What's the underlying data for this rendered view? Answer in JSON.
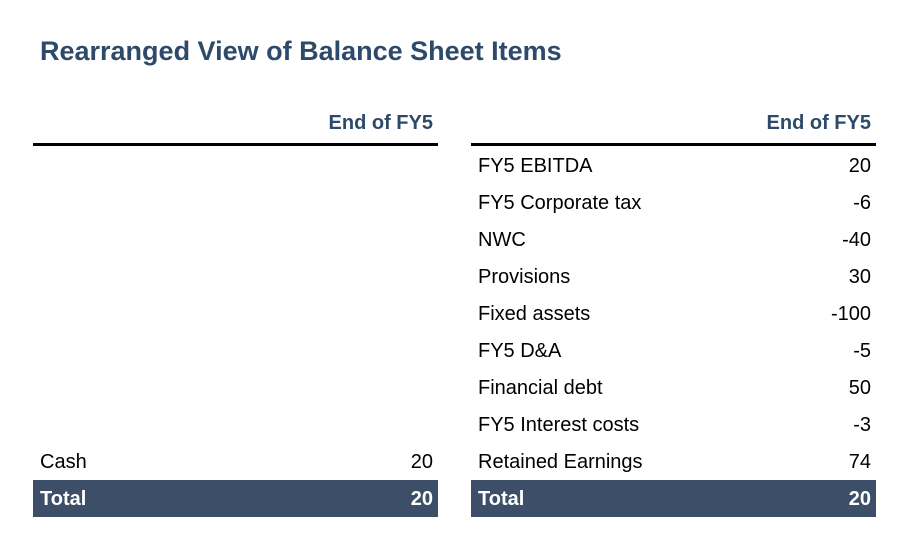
{
  "title": "Rearranged View of Balance Sheet Items",
  "tables": [
    {
      "header": "End of FY5",
      "rows": [
        {
          "label": "Cash",
          "value": 20
        }
      ],
      "total": {
        "label": "Total",
        "value": 20
      }
    },
    {
      "header": "End of FY5",
      "rows": [
        {
          "label": "FY5 EBITDA",
          "value": 20
        },
        {
          "label": "FY5 Corporate tax",
          "value": -6
        },
        {
          "label": "NWC",
          "value": -40
        },
        {
          "label": "Provisions",
          "value": 30
        },
        {
          "label": "Fixed assets",
          "value": -100
        },
        {
          "label": "FY5 D&A",
          "value": -5
        },
        {
          "label": "Financial debt",
          "value": 50
        },
        {
          "label": "FY5 Interest costs",
          "value": -3
        },
        {
          "label": "Retained Earnings",
          "value": 74
        }
      ],
      "total": {
        "label": "Total",
        "value": 20
      }
    }
  ]
}
